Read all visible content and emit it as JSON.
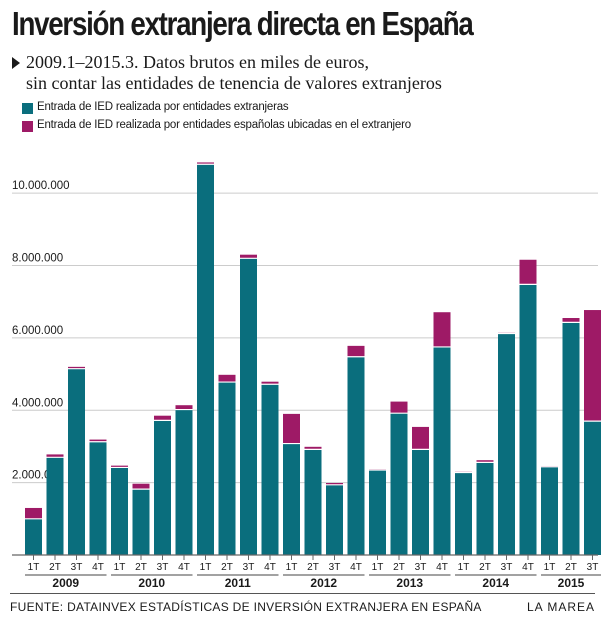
{
  "header": {
    "title": "Inversión extranjera directa en España",
    "subtitle_line1": "2009.1–2015.3. Datos brutos en miles de euros,",
    "subtitle_line2": "sin contar las entidades de tenencia de valores extranjeros"
  },
  "legend": {
    "foreign": "Entrada de IED realizada por entidades extranjeras",
    "spanish": "Entrada de IED realizada por entidades españolas ubicadas en el extranjero"
  },
  "colors": {
    "foreign": "#0a6e7d",
    "spanish": "#9e1a66",
    "grid": "#cccccc",
    "axis": "#666666"
  },
  "footer": {
    "source": "FUENTE: DATAINVEX ESTADÍSTICAS DE INVERSIÓN EXTRANJERA EN ESPAÑA",
    "brand": "LA MAREA"
  },
  "chart_data": {
    "type": "bar",
    "stacked": true,
    "title": "Inversión extranjera directa en España",
    "ylabel": "Miles de euros",
    "ylim": [
      0,
      11000000
    ],
    "yticks": [
      2000000,
      4000000,
      6000000,
      8000000,
      10000000
    ],
    "ytick_labels": [
      "2.000.000",
      "4.000.000",
      "6.000.000",
      "8.000.000",
      "10.000.000"
    ],
    "categories": [
      "1T",
      "2T",
      "3T",
      "4T",
      "1T",
      "2T",
      "3T",
      "4T",
      "1T",
      "2T",
      "3T",
      "4T",
      "1T",
      "2T",
      "3T",
      "4T",
      "1T",
      "2T",
      "3T",
      "4T",
      "1T",
      "2T",
      "3T",
      "4T",
      "1T",
      "2T",
      "3T"
    ],
    "years": [
      {
        "label": "2009",
        "count": 4
      },
      {
        "label": "2010",
        "count": 4
      },
      {
        "label": "2011",
        "count": 4
      },
      {
        "label": "2012",
        "count": 4
      },
      {
        "label": "2013",
        "count": 4
      },
      {
        "label": "2014",
        "count": 4
      },
      {
        "label": "2015",
        "count": 3
      }
    ],
    "series": [
      {
        "name": "Entrada de IED realizada por entidades extranjeras",
        "values": [
          1000000,
          2700000,
          5150000,
          3130000,
          2420000,
          1820000,
          3720000,
          4020000,
          10800000,
          4780000,
          8200000,
          4720000,
          3080000,
          2920000,
          1940000,
          5480000,
          2350000,
          3920000,
          2920000,
          5750000,
          2280000,
          2560000,
          6120000,
          7480000,
          2440000,
          6430000,
          3700000
        ]
      },
      {
        "name": "Entrada de IED realizada por entidades españolas ubicadas en el extranjero",
        "values": [
          300000,
          80000,
          50000,
          60000,
          50000,
          150000,
          130000,
          120000,
          50000,
          200000,
          100000,
          70000,
          820000,
          70000,
          50000,
          300000,
          20000,
          320000,
          620000,
          960000,
          20000,
          60000,
          20000,
          680000,
          20000,
          120000,
          3070000
        ]
      }
    ]
  }
}
